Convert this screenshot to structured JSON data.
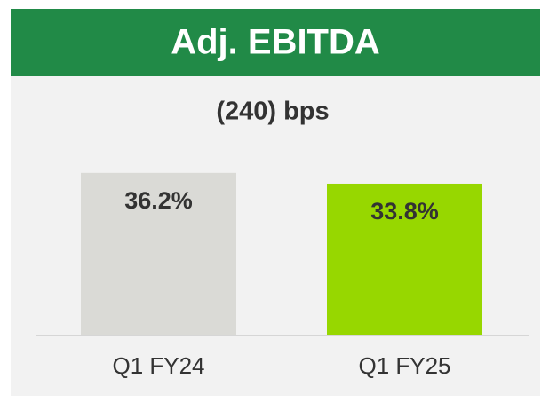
{
  "chart_data": {
    "type": "bar",
    "title": "Adj. EBITDA",
    "subtitle": "(240) bps",
    "categories": [
      "Q1 FY24",
      "Q1 FY25"
    ],
    "values": [
      36.2,
      33.8
    ],
    "value_labels": [
      "36.2%",
      "33.8%"
    ],
    "colors": [
      "#dadad6",
      "#97d700"
    ]
  }
}
